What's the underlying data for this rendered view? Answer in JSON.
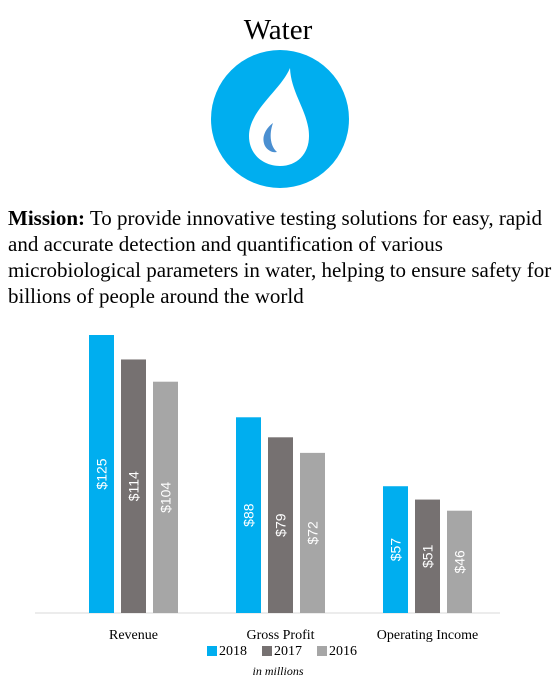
{
  "page": {
    "title": "Water",
    "icon": "water-drop-icon",
    "mission_label": "Mission:",
    "mission_text": "To provide innovative testing solutions for easy, rapid and accurate detection and quantification of various microbiological parameters in water, helping to ensure safety for billions of people around the world",
    "footnote": "in millions"
  },
  "colors": {
    "brand_blue": "#00aeef",
    "drop_accent": "#4a8fd1",
    "series_2018": "#00aeef",
    "series_2017": "#767171",
    "series_2016": "#a6a6a6"
  },
  "chart_data": {
    "type": "bar",
    "categories": [
      "Revenue",
      "Gross Profit",
      "Operating Income"
    ],
    "series": [
      {
        "name": "2018",
        "values": [
          125,
          88,
          57
        ],
        "labels": [
          "$125",
          "$88",
          "$57"
        ],
        "color": "#00aeef"
      },
      {
        "name": "2017",
        "values": [
          114,
          79,
          51
        ],
        "labels": [
          "$114",
          "$79",
          "$51"
        ],
        "color": "#767171"
      },
      {
        "name": "2016",
        "values": [
          104,
          72,
          46
        ],
        "labels": [
          "$104",
          "$72",
          "$46"
        ],
        "color": "#a6a6a6"
      }
    ],
    "ylim": [
      0,
      125
    ],
    "grid": false,
    "legend_position": "bottom"
  }
}
